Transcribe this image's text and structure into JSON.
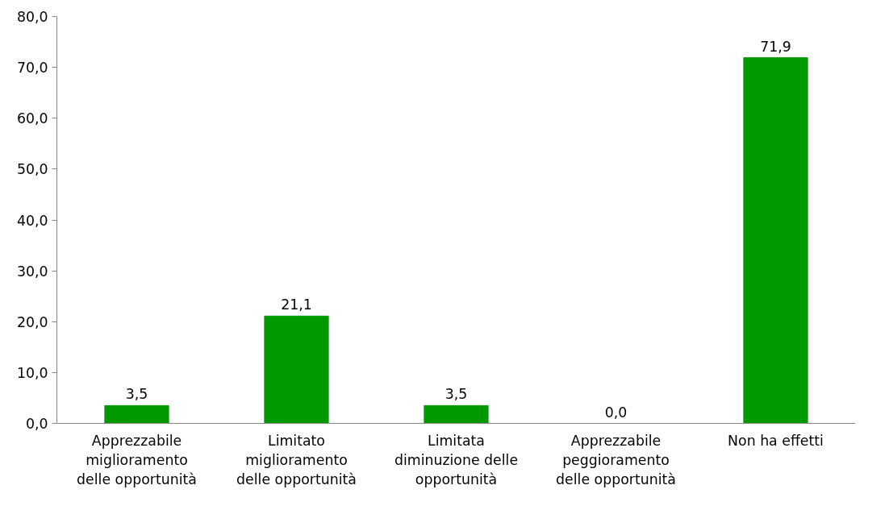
{
  "chart_data": {
    "type": "bar",
    "categories": [
      "Apprezzabile miglioramento delle opportunità",
      "Limitato miglioramento delle opportunità",
      "Limitata diminuzione delle opportunità",
      "Apprezzabile peggioramento delle opportunità",
      "Non ha effetti"
    ],
    "values": [
      3.5,
      21.1,
      3.5,
      0.0,
      71.9
    ],
    "value_labels": [
      "3,5",
      "21,1",
      "3,5",
      "0,0",
      "71,9"
    ],
    "color": "#009900",
    "ylim": [
      0,
      80
    ],
    "yticks": [
      {
        "value": 0,
        "label": "0,0"
      },
      {
        "value": 10,
        "label": "10,0"
      },
      {
        "value": 20,
        "label": "20,0"
      },
      {
        "value": 30,
        "label": "30,0"
      },
      {
        "value": 40,
        "label": "40,0"
      },
      {
        "value": 50,
        "label": "50,0"
      },
      {
        "value": 60,
        "label": "60,0"
      },
      {
        "value": 70,
        "label": "70,0"
      },
      {
        "value": 80,
        "label": "80,0"
      }
    ],
    "grid": false
  }
}
